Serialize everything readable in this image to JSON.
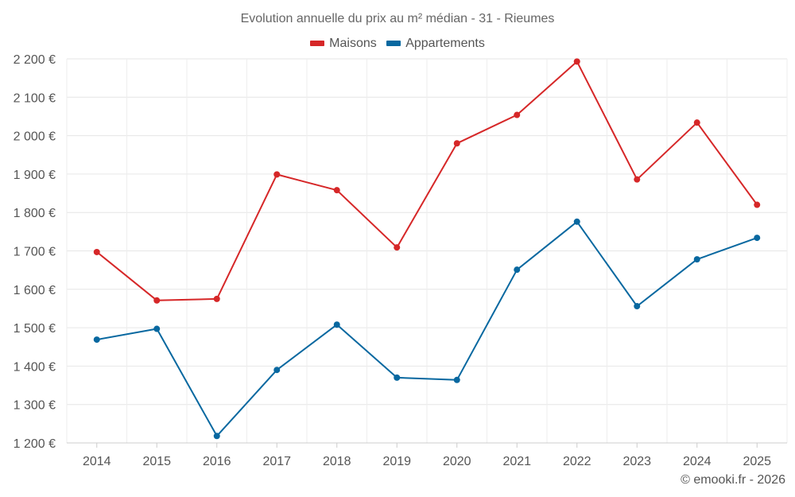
{
  "chart_data": {
    "type": "line",
    "title": "Evolution annuelle du prix au m² médian - 31 - Rieumes",
    "categories": [
      "2014",
      "2015",
      "2016",
      "2017",
      "2018",
      "2019",
      "2020",
      "2021",
      "2022",
      "2023",
      "2024",
      "2025"
    ],
    "series": [
      {
        "name": "Maisons",
        "color": "#d62728",
        "values": [
          1697,
          1571,
          1575,
          1899,
          1858,
          1709,
          1980,
          2054,
          2193,
          1886,
          2034,
          1820
        ]
      },
      {
        "name": "Appartements",
        "color": "#0868a0",
        "values": [
          1469,
          1497,
          1218,
          1390,
          1508,
          1370,
          1364,
          1651,
          1776,
          1556,
          1678,
          1734
        ]
      }
    ],
    "ylim": [
      1200,
      2200
    ],
    "yticks": [
      {
        "value": 1200,
        "label": "1 200 €"
      },
      {
        "value": 1300,
        "label": "1 300 €"
      },
      {
        "value": 1400,
        "label": "1 400 €"
      },
      {
        "value": 1500,
        "label": "1 500 €"
      },
      {
        "value": 1600,
        "label": "1 600 €"
      },
      {
        "value": 1700,
        "label": "1 700 €"
      },
      {
        "value": 1800,
        "label": "1 800 €"
      },
      {
        "value": 1900,
        "label": "1 900 €"
      },
      {
        "value": 2000,
        "label": "2 000 €"
      },
      {
        "value": 2100,
        "label": "2 100 €"
      },
      {
        "value": 2200,
        "label": "2 200 €"
      }
    ],
    "xlabel": "",
    "ylabel": "",
    "grid": true,
    "legend_position": "top-center"
  },
  "footer": {
    "copyright": "© emooki.fr - 2026"
  }
}
